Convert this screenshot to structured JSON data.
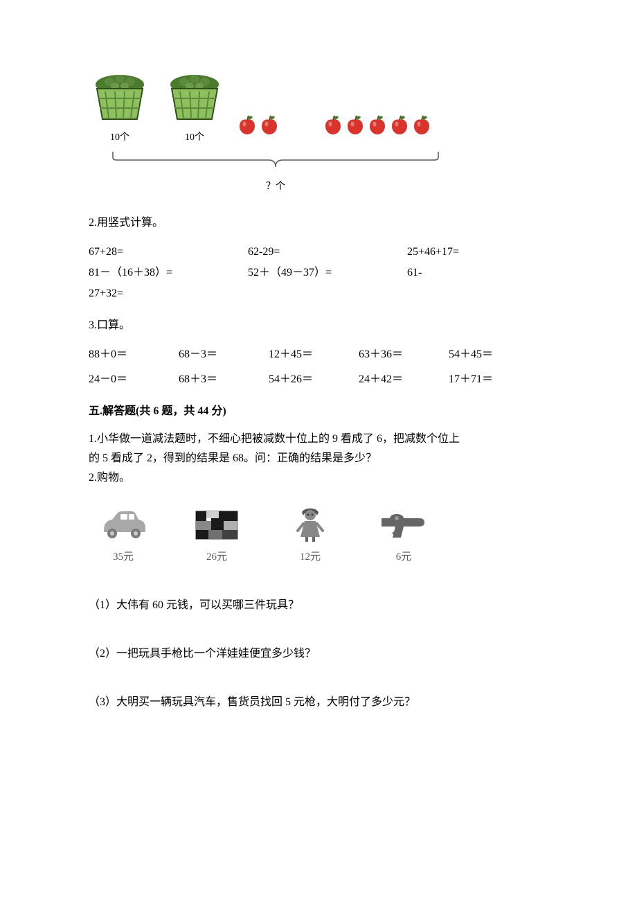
{
  "diagram_q1": {
    "basket1_label": "10个",
    "basket2_label": "10个",
    "apples_group1_count": 2,
    "apples_group2_count": 5,
    "question_label": "？个",
    "basket_body_color": "#8fc060",
    "basket_dark_color": "#5a8a3a",
    "basket_fruit_color": "#4a7a2e",
    "apple_color": "#d8342c",
    "apple_leaf_color": "#4a7a2e",
    "apple_stem_color": "#6b4226",
    "bracket_color": "#5a5a5a"
  },
  "q2": {
    "title": "2.用竖式计算。",
    "row1": [
      "67+28=",
      "62-29=",
      "25+46+17="
    ],
    "row2": [
      "81－（16＋38）=",
      "52＋（49－37）=",
      "61-"
    ],
    "row2_cont": "27+32="
  },
  "q3": {
    "title": "3.口算。",
    "row1": [
      "88＋0＝",
      "68－3＝",
      "12＋45＝",
      "63＋36＝",
      "54＋45＝"
    ],
    "row2": [
      "24－0＝",
      "68＋3＝",
      "54＋26＝",
      "24＋42＝",
      "17＋71＝"
    ]
  },
  "section5": {
    "header": "五.解答题(共 6 题，共 44 分)",
    "q1_line1": "1.小华做一道减法题时，不细心把被减数十位上的 9 看成了 6，把减数个位上",
    "q1_line2": "的 5 看成了 2，得到的结果是 68。问：正确的结果是多少？",
    "q2_title": "2.购物。",
    "products": [
      {
        "name": "car",
        "price": "35元",
        "color": "#a8a8a8"
      },
      {
        "name": "blocks",
        "price": "26元"
      },
      {
        "name": "doll",
        "price": "12元",
        "color": "#888888"
      },
      {
        "name": "gun",
        "price": "6元",
        "color": "#666666"
      }
    ],
    "sub_q1": "（1）大伟有 60 元钱，可以买哪三件玩具？",
    "sub_q2": "（2）一把玩具手枪比一个洋娃娃便宜多少钱？",
    "sub_q3": "（3）大明买一辆玩具汽车，售货员找回 5 元枪，大明付了多少元？"
  }
}
